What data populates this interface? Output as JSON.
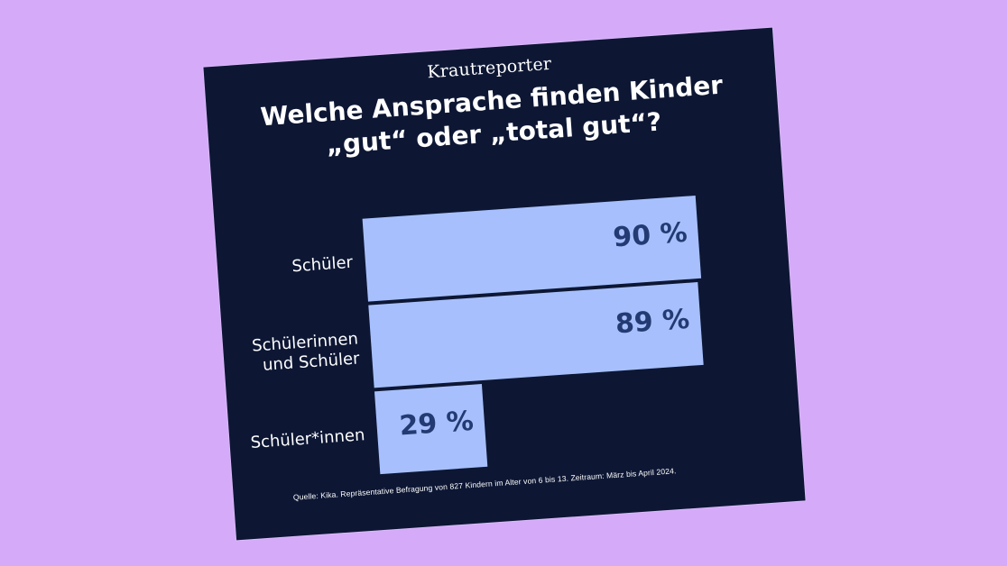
{
  "brand": "Krautreporter",
  "title_line1": "Welche Ansprache finden Kinder",
  "title_line2": "„gut“ oder „total gut“?",
  "source": "Quelle: Kika. Repräsentative Befragung von 827 Kindern im Alter von 6 bis 13. Zeitraum: März bis April 2024.",
  "colors": {
    "background": "#d4aaf9",
    "card": "#0d1734",
    "bar": "#a7c0fd",
    "bar_label": "#233a73",
    "text": "#ffffff"
  },
  "chart_data": {
    "type": "bar",
    "orientation": "horizontal",
    "categories": [
      [
        "Schüler"
      ],
      [
        "Schülerinnen",
        "und Schüler"
      ],
      [
        "Schüler*innen"
      ]
    ],
    "values": [
      90,
      89,
      29
    ],
    "value_labels": [
      "90 %",
      "89 %",
      "29 %"
    ],
    "xlim": [
      0,
      90
    ],
    "unit": "%",
    "title": "Welche Ansprache finden Kinder „gut“ oder „total gut“?",
    "grid": false
  }
}
